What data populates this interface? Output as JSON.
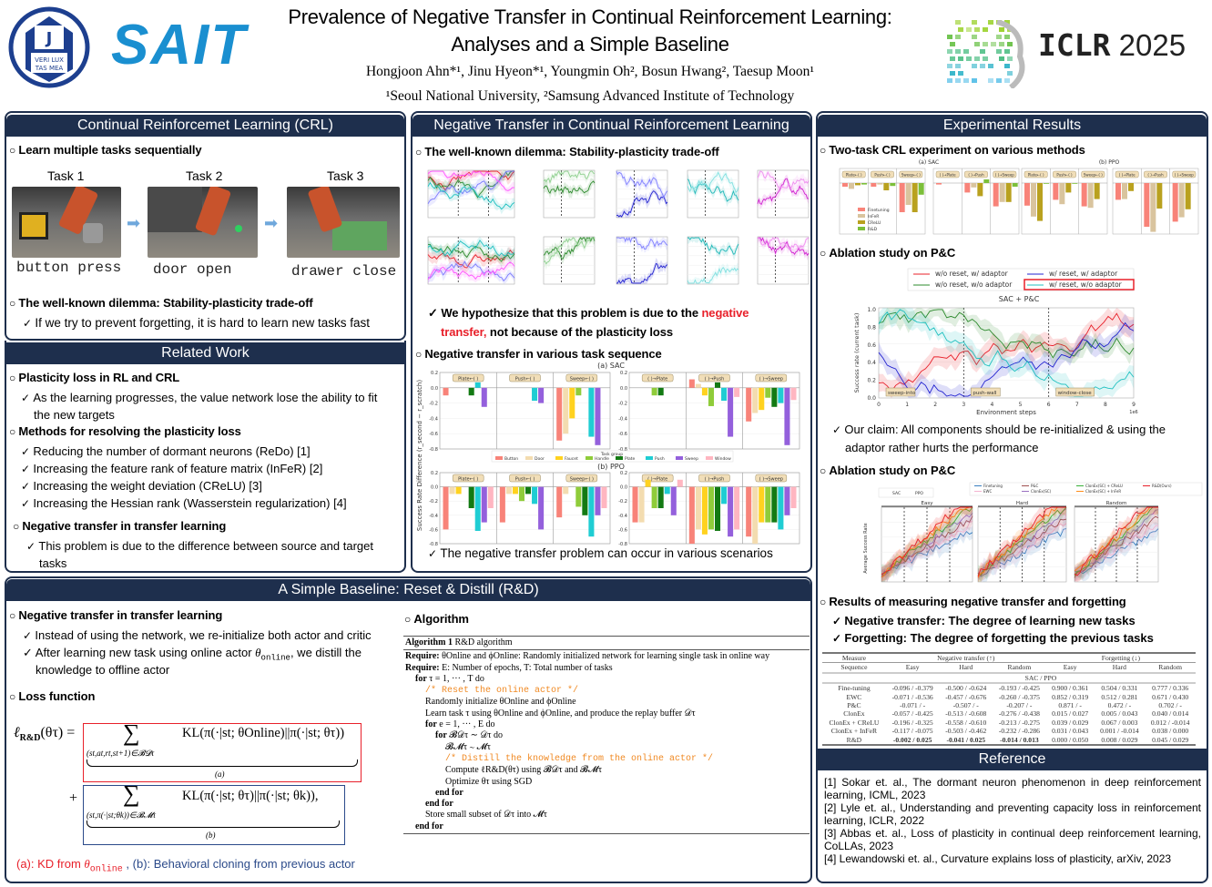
{
  "header": {
    "title_line1": "Prevalence of Negative Transfer in Continual Reinforcement Learning:",
    "title_line2": "Analyses and a Simple Baseline",
    "authors": "Hongjoon Ahn*¹, Jinu Hyeon*¹, Youngmin Oh², Bosun Hwang², Taesup Moon¹",
    "affiliations": "¹Seoul National University, ²Samsung Advanced Institute of Technology",
    "snu_logo_text": "VERI LUX TAS MEA",
    "sait_logo": "SAIT",
    "iclr_logo": "ICLR",
    "iclr_year": "2025",
    "colors": {
      "navy": "#1e2f4d",
      "sait_blue": "#1a8fd0",
      "red": "#e8202a"
    }
  },
  "crl": {
    "title": "Continual Reinforcemet Learning (CRL)",
    "bullet1": "Learn multiple tasks sequentially",
    "tasks": [
      {
        "label": "Task 1",
        "caption": "button press"
      },
      {
        "label": "Task 2",
        "caption": "door open"
      },
      {
        "label": "Task 3",
        "caption": "drawer close"
      }
    ],
    "bullet2": "The well-known dilemma: Stability-plasticity trade-off",
    "check1": "If we try to prevent forgetting, it is hard to learn new tasks fast"
  },
  "related": {
    "title": "Related Work",
    "s1": "Plasticity loss in RL and CRL",
    "s1_items": [
      "As the learning progresses, the value network lose the ability to fit",
      "the new targets"
    ],
    "s2": "Methods for resolving the plasticity loss",
    "s2_items": [
      "Reducing the number of dormant neurons (ReDo) [1]",
      "Increasing the feature rank of feature matrix (InFeR) [2]",
      "Increasing the weight deviation (CReLU) [3]",
      "Increasing the Hessian rank (Wasserstein regularization) [4]"
    ],
    "s3": "Negative transfer in transfer learning",
    "s3_items": [
      "This problem is due to the difference between source and target",
      "tasks"
    ]
  },
  "nt": {
    "title": "Negative Transfer in Continual Reinforcement Learning",
    "bullet1": "The well-known dilemma: Stability-plasticity trade-off",
    "hyp_pre": "We hypothesize that this problem is due to the ",
    "hyp_red1": "negative",
    "hyp_red2": "transfer,",
    "hyp_post": " not because of the plasticity loss",
    "bullet2": "Negative transfer in various task sequence",
    "fig_sac": "(a) SAC",
    "fig_ppo": "(b) PPO",
    "ylabel": "Success Rate Difference (r_second − r_scratch)",
    "legend_title": "Task group",
    "task_groups": [
      "Button",
      "Door",
      "Faucet",
      "Handle",
      "Plate",
      "Push",
      "Sweep",
      "Window"
    ],
    "group_colors": [
      "#f88379",
      "#f3dcb0",
      "#ffd21f",
      "#8fcc3a",
      "#137a13",
      "#1fcdd3",
      "#9460dc",
      "#ffb6c1"
    ],
    "panel_labels_left": [
      "Plate←( )",
      "Push←( )",
      "Sweep←( )"
    ],
    "panel_labels_right": [
      "( )→Plate",
      "( )→Push",
      "( )→Sweep"
    ],
    "yticks": [
      "0.2",
      "0.0",
      "-0.2",
      "-0.4",
      "-0.6",
      "-0.8"
    ],
    "sac_left": [
      [
        -0.1,
        null,
        null,
        null,
        -0.1,
        0.07,
        -0.25,
        null
      ],
      [
        null,
        null,
        null,
        null,
        null,
        -0.17,
        -0.2,
        null
      ],
      [
        -0.69,
        -0.6,
        -0.4,
        -0.1,
        null,
        -0.64,
        -0.75,
        null
      ]
    ],
    "sac_right": [
      [
        null,
        null,
        null,
        -0.1,
        -0.1,
        null,
        null,
        null
      ],
      [
        0.11,
        0.05,
        -0.1,
        -0.24,
        0.07,
        -0.17,
        -0.64,
        -0.12
      ],
      [
        -0.44,
        -0.33,
        -0.29,
        -0.13,
        -0.25,
        -0.2,
        -0.75,
        -0.16
      ]
    ],
    "ppo_left": [
      [
        -0.6,
        -0.1,
        -0.1,
        null,
        -0.3,
        -0.62,
        -0.5,
        -0.3
      ],
      [
        -0.5,
        -0.1,
        -0.1,
        -0.2,
        -0.1,
        -0.24,
        -0.6,
        null
      ],
      [
        -0.43,
        -0.1,
        null,
        -0.28,
        -0.4,
        -0.7,
        -0.4,
        -0.3
      ]
    ],
    "ppo_right": [
      [
        -0.5,
        -0.5,
        0.1,
        -0.3,
        -0.3,
        -0.1,
        -0.4,
        0.1
      ],
      [
        -0.8,
        -0.6,
        -0.67,
        -0.6,
        -0.62,
        -0.24,
        -0.7,
        -0.6
      ],
      [
        -0.7,
        -0.8,
        -0.5,
        -0.5,
        -0.5,
        -0.6,
        -0.4,
        -0.3
      ]
    ],
    "check_end": "The negative transfer problem can occur in various scenarios"
  },
  "exp": {
    "title": "Experimental Results",
    "bullet1": "Two-task CRL experiment on various methods",
    "fig_sac": "(a) SAC",
    "fig_ppo": "(b) PPO",
    "methods": [
      "Finetuning",
      "InFeR",
      "CReLU",
      "R&D"
    ],
    "method_colors": [
      "#f88379",
      "#d9c49e",
      "#b9a11f",
      "#7cbf3a"
    ],
    "panel_labels": [
      "Plate←( )",
      "Push←( )",
      "Sweep←( )",
      "( )→Plate",
      "( )→Push",
      "( )→Sweep"
    ],
    "sac": [
      [
        -0.05,
        -0.08,
        -0.03,
        -0.02
      ],
      [
        -0.05,
        -0.02,
        -0.1,
        -0.04
      ],
      [
        -0.4,
        -0.3,
        -0.4,
        -0.16
      ],
      [
        -0.02,
        0,
        0,
        0
      ],
      [
        -0.13,
        -0.06,
        -0.18,
        0.05
      ],
      [
        -0.32,
        -0.26,
        -0.26,
        -0.05
      ]
    ],
    "ppo": [
      [
        -0.31,
        -0.46,
        -0.52,
        -0.01
      ],
      [
        -0.23,
        -0.29,
        -0.13,
        -0.01
      ],
      [
        -0.32,
        -0.34,
        -0.22,
        null
      ],
      [
        -0.23,
        -0.22,
        -0.11,
        null
      ],
      [
        -0.6,
        -0.67,
        -0.35,
        null
      ],
      [
        -0.53,
        -0.47,
        -0.36,
        null
      ]
    ],
    "bullet2": "Ablation study on P&C",
    "ablation_legend": [
      "w/o reset, w/ adaptor",
      "w/o reset, w/o adaptor",
      "w/ reset, w/ adaptor",
      "w/ reset, w/o adaptor"
    ],
    "ablation_colors": [
      "#e8202a",
      "#2e8b2e",
      "#2323d0",
      "#20c0c0"
    ],
    "ablation_title": "SAC + P&C",
    "ablation_ylabel": "Success rate (current task)",
    "ablation_xlabel": "Environment steps",
    "ablation_xscale": "1e6",
    "ablation_tasks": [
      "sweep-into",
      "push-wall",
      "window-close"
    ],
    "ablation_xticks": [
      "0",
      "1",
      "2",
      "3",
      "4",
      "5",
      "6",
      "7",
      "8",
      "9"
    ],
    "ablation_yticks": [
      "0.0",
      "0.2",
      "0.4",
      "0.6",
      "0.8",
      "1.0"
    ],
    "claim_line1": "Our claim: All components should be re-initialized & using the",
    "claim_line2": "adaptor rather hurts the performance",
    "bullet3": "Ablation study on P&C",
    "seq_legend": [
      "SAC",
      "PPO",
      "Finetuning",
      "EWC",
      "P&C",
      "ClonEx(SC)",
      "ClonEx(SC) + CReLU",
      "ClonEx(SC) + InFeR",
      "R&D(Ours)"
    ],
    "seq_panels": [
      "Easy",
      "Hard",
      "Random"
    ],
    "seq_ylabel": "Average Success Rate",
    "bullet4": "Results of measuring negative transfer and forgetting",
    "check_nt": "Negative transfer: The degree of learning new tasks",
    "check_fg": "Forgetting: The degree of forgetting the previous tasks",
    "table": {
      "measure": "Measure",
      "nt_head": "Negative transfer (↑)",
      "fg_head": "Forgetting (↓)",
      "sequence": "Sequence",
      "cols": [
        "Easy",
        "Hard",
        "Random",
        "Easy",
        "Hard",
        "Random"
      ],
      "group": "SAC / PPO",
      "rows": [
        {
          "name": "Fine-tuning",
          "vals": [
            "-0.096 / -0.379",
            "-0.500 / -0.624",
            "-0.193 / -0.425",
            "0.900 / 0.361",
            "0.504 / 0.331",
            "0.777 / 0.336"
          ]
        },
        {
          "name": "EWC",
          "vals": [
            "-0.071 / -0.536",
            "-0.457 / -0.676",
            "-0.260 / -0.375",
            "0.852 / 0.319",
            "0.512 / 0.281",
            "0.671 / 0.430"
          ]
        },
        {
          "name": "P&C",
          "vals": [
            "-0.071 / -",
            "-0.507 / -",
            "-0.207 / -",
            "0.871 / -",
            "0.472 / -",
            "0.702 / -"
          ]
        },
        {
          "name": "ClonEx",
          "vals": [
            "-0.057 / -0.425",
            "-0.513 / -0.608",
            "-0.276 / -0.438",
            "0.015 / 0.027",
            "0.005 / 0.043",
            "0.040 / 0.014"
          ]
        },
        {
          "name": "ClonEx + CReLU",
          "vals": [
            "-0.196 / -0.325",
            "-0.558 / -0.610",
            "-0.213 / -0.275",
            "0.039 / 0.029",
            "0.067 / 0.003",
            "0.012 / -0.014"
          ]
        },
        {
          "name": "ClonEx + InFeR",
          "vals": [
            "-0.117 / -0.075",
            "-0.503 / -0.462",
            "-0.232 / -0.286",
            "0.031 / 0.043",
            "0.001 / -0.014",
            "0.038 / 0.000"
          ]
        },
        {
          "name": "R&D",
          "vals": [
            "-0.002 / 0.025",
            "-0.041 / 0.025",
            "-0.014 / 0.013",
            "0.000 / 0.050",
            "0.008 / 0.029",
            "0.045 / 0.029"
          ]
        }
      ]
    }
  },
  "rd": {
    "title": "A Simple Baseline: Reset & Distill (R&D)",
    "bullet1": "Negative transfer in transfer learning",
    "check1": "Instead of using the network, we re-initialize both actor and critic",
    "check2_pre": "After learning new task using online actor ",
    "check2_theta": "θ",
    "check2_sub": "online",
    "check2_post": ", we distill the",
    "check2_line2": "knowledge to offline actor",
    "bullet2": "Loss function",
    "f_lhs": "ℓ",
    "f_lhs_sub": "R&D",
    "f_lhs_arg": "(θτ) =",
    "f_sum": "∑",
    "f_a_sub": "(st,at,rt,st+1)∈𝓑𝓓τ",
    "f_a_kl": "KL(π(·|st; θOnline)||π(·|st; θτ))",
    "f_a_label": "(a)",
    "f_plus": "+",
    "f_b_sub": "(st,π(·|st;θk))∈𝓑𝓜τ",
    "f_b_kl": "KL(π(·|st; θτ)||π(·|st; θk)),",
    "f_b_label": "(b)",
    "cap_a": "(a): KD from ",
    "cap_theta": "θ",
    "cap_sub": "online",
    "cap_b": " , (b): Behavioral cloning from previous actor",
    "cap_colors": {
      "a": "#e8202a",
      "b": "#2b4a8a"
    }
  },
  "algo": {
    "bullet": "Algorithm",
    "head_bold": "Algorithm 1",
    "head": " R&D algorithm",
    "lines": [
      {
        "k": "req",
        "b": "Require:",
        "t": " θOnline and ϕOnline: Randomly initialized network for learning single task in online way",
        "i": 0
      },
      {
        "k": "req",
        "b": "Require:",
        "t": " E: Number of epochs, T: Total number of tasks",
        "i": 0
      },
      {
        "k": "kw",
        "b": "for",
        "t": " τ = 1, ··· , T do",
        "i": 1
      },
      {
        "k": "cm",
        "t": "/* Reset the online actor */",
        "i": 2
      },
      {
        "k": "n",
        "t": "Randomly initialize θOnline and ϕOnline",
        "i": 2
      },
      {
        "k": "n",
        "t": "Learn task τ using θOnline and ϕOnline, and produce the replay buffer 𝒟τ",
        "i": 2
      },
      {
        "k": "kw",
        "b": "for",
        "t": " e = 1, ··· , E do",
        "i": 2
      },
      {
        "k": "kw",
        "b": "for",
        "t": " 𝓑𝒟τ ∼ 𝒟τ do",
        "i": 3
      },
      {
        "k": "n",
        "t": "𝓑𝓜τ ∼ 𝓜τ",
        "i": 4
      },
      {
        "k": "cm",
        "t": "/* Distill the knowledge from the online actor */",
        "i": 4
      },
      {
        "k": "n",
        "t": "Compute ℓR&D(θτ) using 𝓑𝒟τ and 𝓑𝓜τ",
        "i": 4
      },
      {
        "k": "n",
        "t": "Optimize θτ using SGD",
        "i": 4
      },
      {
        "k": "kw",
        "b": "end for",
        "t": "",
        "i": 3
      },
      {
        "k": "kw",
        "b": "end for",
        "t": "",
        "i": 2
      },
      {
        "k": "n",
        "t": "Store small subset of 𝒟τ into 𝓜τ",
        "i": 2
      },
      {
        "k": "kw",
        "b": "end for",
        "t": "",
        "i": 1
      }
    ]
  },
  "ref": {
    "title": "Reference",
    "items": [
      "[1] Sokar et. al., The dormant neuron phenomenon in deep reinforcement learning, ICML, 2023",
      "[2] Lyle et. al., Understanding and preventing capacity loss in reinforcement learning, ICLR, 2022",
      "[3] Abbas et. al., Loss of plasticity in continual deep reinforcement learning, CoLLAs, 2023",
      "[4] Lewandowski et. al., Curvature explains loss of plasticity, arXiv, 2023"
    ]
  }
}
